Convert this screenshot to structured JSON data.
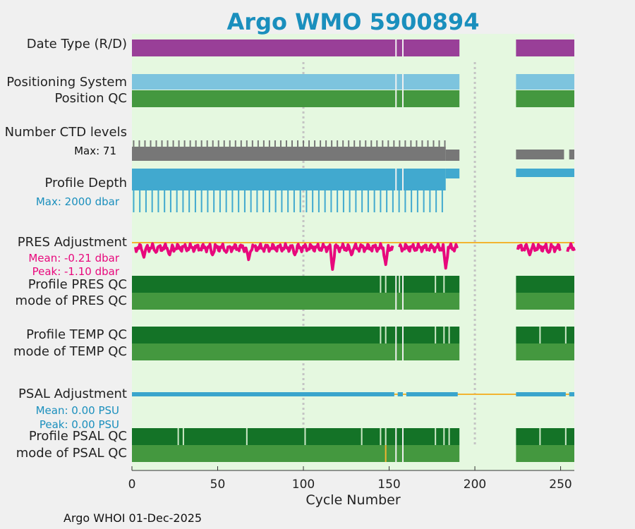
{
  "chart_data": {
    "type": "timeline",
    "title": "Argo WMO 5900894",
    "xlabel": "Cycle Number",
    "xlim": [
      0,
      258
    ],
    "xticks": [
      "0",
      "50",
      "100",
      "150",
      "200",
      "250"
    ],
    "tick_values": [
      0,
      50,
      100,
      150,
      200,
      250
    ],
    "data_ranges": [
      [
        0,
        191
      ],
      [
        224,
        258
      ]
    ],
    "gap_cycles": [
      154,
      158
    ],
    "reference_lines": [
      100,
      200
    ],
    "rows": {
      "date_type": "Date Type (R/D)",
      "positioning": "Positioning System",
      "position_qc": "Position QC",
      "ctd_levels": "Number CTD levels",
      "ctd_max": "Max: 71",
      "profile_depth": "Profile Depth",
      "depth_max": "Max: 2000 dbar",
      "pres_adjustment": "PRES Adjustment",
      "pres_mean": "Mean: -0.21 dbar",
      "pres_peak": "Peak: -1.10 dbar",
      "profile_pres_qc": "Profile PRES QC",
      "mode_pres_qc": "mode of PRES QC",
      "profile_temp_qc": "Profile TEMP QC",
      "mode_temp_qc": "mode of TEMP QC",
      "psal_adjustment": "PSAL Adjustment",
      "psal_mean": "Mean: 0.00 PSU",
      "psal_peak": "Peak: 0.00 PSU",
      "profile_psal_qc": "Profile PSAL QC",
      "mode_psal_qc": "mode of PSAL QC"
    },
    "pres_dips": [
      [
        7,
        -0.6
      ],
      [
        14,
        -0.4
      ],
      [
        22,
        -0.5
      ],
      [
        47,
        -0.5
      ],
      [
        55,
        -0.4
      ],
      [
        68,
        -0.7
      ],
      [
        95,
        -0.5
      ],
      [
        117,
        -1.1
      ],
      [
        128,
        -0.5
      ],
      [
        148,
        -0.9
      ],
      [
        183,
        -1.05
      ],
      [
        232,
        -0.5
      ],
      [
        243,
        -0.4
      ]
    ],
    "colors": {
      "background": "#f0f0f0",
      "plot_bg": "#e5f8e0",
      "date_type": "#993f98",
      "positioning": "#7dc4de",
      "qc_good": "#44983f",
      "qc_dark": "#147327",
      "ctd": "#777777",
      "depth": "#41a9cf",
      "pres": "#e8087c",
      "psal": "#3aa5cc",
      "zero_line": "#f2b431",
      "accent_text_depth": "#1a8fbd",
      "accent_text_pres": "#e8087c"
    }
  },
  "footer": "Argo WHOI 01-Dec-2025"
}
